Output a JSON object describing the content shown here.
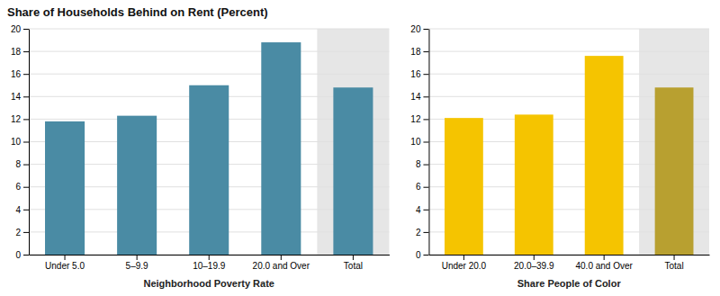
{
  "chart_data": [
    {
      "type": "bar",
      "title": "Share of Households Behind on Rent (Percent)",
      "xlabel": "Neighborhood Poverty Rate",
      "categories": [
        "Under 5.0",
        "5–9.9",
        "10–19.9",
        "20.0 and Over",
        "Total"
      ],
      "values": [
        11.8,
        12.3,
        15.0,
        18.8,
        14.8
      ],
      "color": "#4a8ba4",
      "ylim": [
        0,
        20
      ],
      "yticks": [
        0,
        2,
        4,
        6,
        8,
        10,
        12,
        14,
        16,
        18,
        20
      ],
      "grid": true
    },
    {
      "type": "bar",
      "xlabel": "Share People of Color",
      "categories": [
        "Under 20.0",
        "20.0–39.9",
        "40.0 and Over",
        "Total"
      ],
      "values": [
        12.1,
        12.4,
        17.6,
        14.8
      ],
      "colors": [
        "#f5c400",
        "#f5c400",
        "#f5c400",
        "#b8a030"
      ],
      "ylim": [
        0,
        20
      ],
      "yticks": [
        0,
        2,
        4,
        6,
        8,
        10,
        12,
        14,
        16,
        18,
        20
      ],
      "grid": true
    }
  ]
}
